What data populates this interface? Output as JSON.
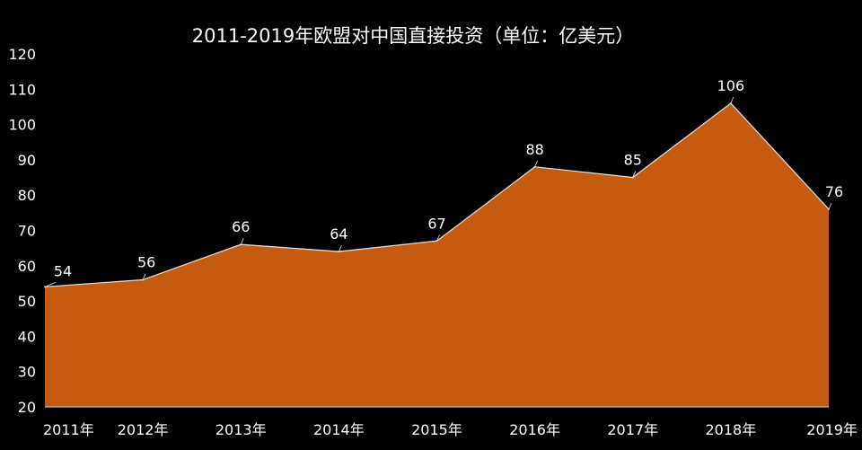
{
  "chart_data": {
    "type": "area",
    "title": "2011-2019年欧盟对中国直接投资（单位：亿美元）",
    "categories": [
      "2011年",
      "2012年",
      "2013年",
      "2014年",
      "2015年",
      "2016年",
      "2017年",
      "2018年",
      "2019年"
    ],
    "values": [
      54,
      56,
      66,
      64,
      67,
      88,
      85,
      106,
      76
    ],
    "data_labels": [
      "54",
      "56",
      "66",
      "64",
      "67",
      "88",
      "85",
      "106",
      "76"
    ],
    "xlabel": "",
    "ylabel": "",
    "ylim": [
      20,
      120
    ],
    "yticks": [
      "20",
      "30",
      "40",
      "50",
      "60",
      "70",
      "80",
      "90",
      "100",
      "110",
      "120"
    ],
    "grid": false,
    "legend": "none",
    "colors": {
      "fill": "#c55a11",
      "line": "#d9d9d9",
      "background": "#000000",
      "text": "#ffffff"
    }
  }
}
